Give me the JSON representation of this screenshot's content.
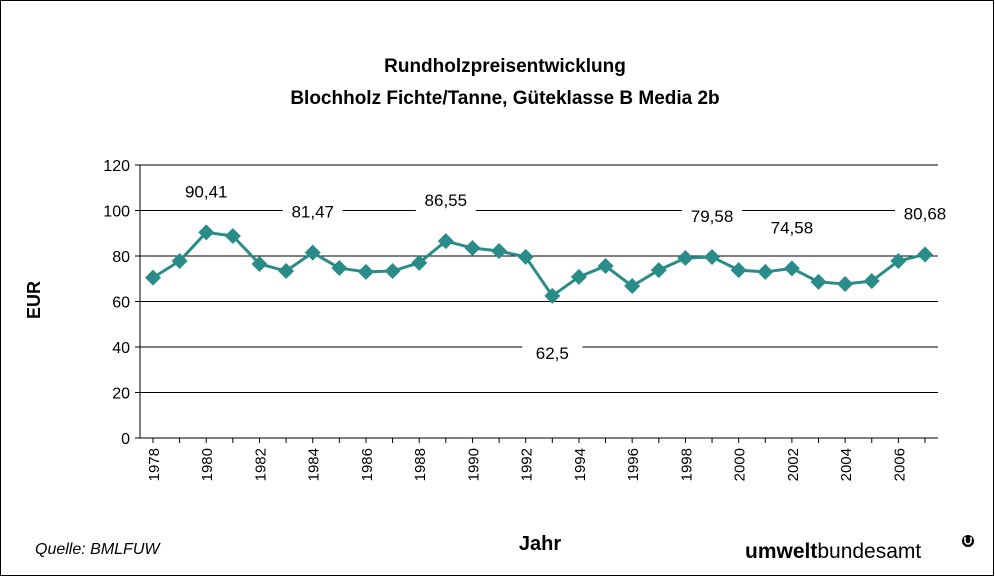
{
  "chart_data": {
    "type": "line",
    "title": [
      "Rundholzpreisentwicklung",
      "Blochholz Fichte/Tanne, Güteklasse B Media 2b"
    ],
    "y_label": "EUR",
    "x_label": "Jahr",
    "source": "Quelle: BMLFUW",
    "logo": {
      "bold": "umwelt",
      "normal": "bundesamt"
    },
    "categories": [
      "1978",
      null,
      "1980",
      null,
      "1982",
      null,
      "1984",
      null,
      "1986",
      null,
      "1988",
      null,
      "1990",
      null,
      "1992",
      null,
      "1994",
      null,
      "1996",
      null,
      "1998",
      null,
      "2000",
      null,
      "2002",
      null,
      "2004",
      null,
      "2006",
      null
    ],
    "series": [
      {
        "name": null,
        "color": "#2a8c88",
        "values": [
          70.5,
          77.8,
          90.41,
          88.8,
          76.5,
          73.4,
          81.47,
          74.7,
          73,
          73.4,
          77,
          86.55,
          83.5,
          82.2,
          79.6,
          62.5,
          70.8,
          75.6,
          66.8,
          73.8,
          79.1,
          79.58,
          73.8,
          73,
          74.58,
          68.6,
          67.7,
          69,
          77.8,
          80.68
        ],
        "value_labels": [
          null,
          null,
          "90,41",
          null,
          null,
          null,
          "81,47",
          null,
          null,
          null,
          null,
          "86,55",
          null,
          null,
          null,
          "62,5",
          null,
          null,
          null,
          null,
          null,
          "79,58",
          null,
          null,
          "74,58",
          null,
          null,
          null,
          null,
          "80,68"
        ]
      }
    ],
    "ylim": [
      0,
      120
    ],
    "yticks": [
      0,
      20,
      40,
      60,
      80,
      100,
      120
    ],
    "grid": true
  }
}
